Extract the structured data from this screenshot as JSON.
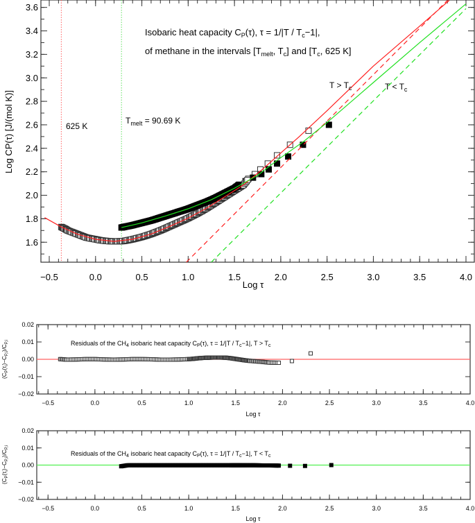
{
  "chart_data": [
    {
      "type": "scatter",
      "xlabel": "Log τ",
      "ylabel": "Log CP(τ) [J/(mol K)]",
      "xlim": [
        -0.59,
        4.09
      ],
      "ylim": [
        1.43,
        3.663
      ],
      "xticks": [
        "-0.5",
        "0.0",
        "0.5",
        "1.0",
        "1.5",
        "2.0",
        "2.5",
        "3.0",
        "3.5",
        "4.0"
      ],
      "yticks": [
        "1.6",
        "1.8",
        "2.0",
        "2.2",
        "2.4",
        "2.6",
        "2.8",
        "3.0",
        "3.2",
        "3.4",
        "3.6"
      ],
      "title_line1": {
        "a": "Isobaric heat capacity C",
        "b": "P",
        "c": "(τ), τ = 1/|T / T",
        "d": "c",
        "e": "−1|,"
      },
      "title_line2": {
        "a": "of methane in the intervals [T",
        "b": "melt",
        "c": ", T",
        "d": "c",
        "e": "] and [T",
        "f": "c",
        "g": ", 625 K]"
      },
      "label_above": {
        "a": "T > T",
        "b": "c"
      },
      "label_below": {
        "a": "T < T",
        "b": "c"
      },
      "vline_625": {
        "x": -0.37,
        "label": "625 K",
        "color": "#ff6060"
      },
      "vline_melt": {
        "x": 0.28,
        "label_a": "T",
        "label_b": "melt",
        "label_c": " = 90.69 K",
        "color": "#60e060"
      },
      "colors": {
        "above": "#ff2020",
        "below": "#20e020"
      },
      "series": [
        {
          "name": "T > Tc",
          "marker": "open-square",
          "x": [
            -0.37,
            -0.33,
            -0.3,
            -0.25,
            -0.2,
            -0.15,
            -0.1,
            -0.05,
            0,
            0.05,
            0.1,
            0.15,
            0.2,
            0.25,
            0.3,
            0.35,
            0.4,
            0.45,
            0.5,
            0.55,
            0.6,
            0.65,
            0.7,
            0.75,
            0.8,
            0.85,
            0.9,
            0.95,
            1.0,
            1.05,
            1.1,
            1.15,
            1.2,
            1.25,
            1.3,
            1.35,
            1.4,
            1.45,
            1.5,
            1.55,
            1.6,
            1.65,
            1.72,
            1.78,
            1.86,
            1.96,
            2.1,
            2.3
          ],
          "y": [
            1.73,
            1.715,
            1.7,
            1.685,
            1.67,
            1.655,
            1.64,
            1.632,
            1.625,
            1.617,
            1.612,
            1.609,
            1.607,
            1.608,
            1.61,
            1.617,
            1.625,
            1.635,
            1.645,
            1.657,
            1.67,
            1.685,
            1.7,
            1.717,
            1.735,
            1.752,
            1.77,
            1.787,
            1.805,
            1.825,
            1.845,
            1.867,
            1.89,
            1.915,
            1.94,
            1.965,
            1.99,
            2.015,
            2.04,
            2.065,
            2.09,
            2.14,
            2.18,
            2.22,
            2.27,
            2.34,
            2.43,
            2.55
          ]
        },
        {
          "name": "T < Tc",
          "marker": "filled-square",
          "x": [
            0.28,
            0.32,
            0.36,
            0.4,
            0.45,
            0.5,
            0.55,
            0.6,
            0.65,
            0.7,
            0.75,
            0.8,
            0.85,
            0.9,
            0.95,
            1.0,
            1.05,
            1.1,
            1.15,
            1.2,
            1.25,
            1.3,
            1.35,
            1.4,
            1.45,
            1.5,
            1.55,
            1.62,
            1.7,
            1.79,
            1.87,
            1.96,
            2.08,
            2.24,
            2.52
          ],
          "y": [
            1.725,
            1.732,
            1.738,
            1.745,
            1.755,
            1.765,
            1.775,
            1.785,
            1.797,
            1.81,
            1.822,
            1.835,
            1.847,
            1.86,
            1.872,
            1.885,
            1.9,
            1.915,
            1.93,
            1.945,
            1.962,
            1.98,
            2.0,
            2.02,
            2.04,
            2.06,
            2.09,
            2.12,
            2.15,
            2.18,
            2.22,
            2.27,
            2.33,
            2.43,
            2.6
          ]
        },
        {
          "name": "fit T > Tc",
          "style": "solid",
          "x": [
            -0.55,
            -0.37,
            -0.2,
            0,
            0.2,
            0.4,
            0.6,
            0.8,
            1.0,
            1.2,
            1.4,
            1.6,
            1.8,
            2.0,
            2.2,
            2.5,
            3.0,
            3.5,
            3.82
          ],
          "y": [
            1.81,
            1.73,
            1.67,
            1.625,
            1.607,
            1.625,
            1.67,
            1.735,
            1.805,
            1.89,
            1.99,
            2.09,
            2.22,
            2.36,
            2.5,
            2.72,
            3.1,
            3.44,
            3.66
          ]
        },
        {
          "name": "asymptote T > Tc",
          "style": "dashed",
          "x": [
            0.98,
            3.8
          ],
          "y": [
            1.43,
            3.66
          ]
        },
        {
          "name": "fit T < Tc",
          "style": "solid",
          "x": [
            0.28,
            0.5,
            0.75,
            1.0,
            1.25,
            1.5,
            1.75,
            2.0,
            2.25,
            2.5,
            3.0,
            3.5,
            4.0
          ],
          "y": [
            1.725,
            1.765,
            1.822,
            1.885,
            1.962,
            2.06,
            2.17,
            2.32,
            2.46,
            2.62,
            2.96,
            3.3,
            3.63
          ]
        },
        {
          "name": "asymptote T < Tc",
          "style": "dashed",
          "x": [
            1.25,
            4.0
          ],
          "y": [
            1.43,
            3.59
          ]
        }
      ]
    },
    {
      "type": "scatter",
      "title": {
        "a": "Residuals of the CH",
        "b": "4",
        "c": " isobaric heat capacity C",
        "d": "P",
        "e": "(τ), τ = 1/|T / T",
        "f": "c",
        "g": "−1|, T > T",
        "h": "c"
      },
      "xlabel": "Log τ",
      "ylabel": {
        "a": "(C",
        "b": "P",
        "c": "(τ",
        "d": "i",
        "e": ")−C",
        "f": "P,i",
        "g": ")/C",
        "h": "P,i"
      },
      "xlim": [
        -0.62,
        4.0
      ],
      "ylim": [
        -0.02,
        0.02
      ],
      "xticks": [
        "-0.5",
        "0.0",
        "0.5",
        "1.0",
        "1.5",
        "2.0",
        "2.5",
        "3.0",
        "3.5",
        "4.0"
      ],
      "yticks": [
        "-0.02",
        "-0.01",
        "0.00",
        "0.01",
        "0.02"
      ],
      "zero_line_color": "#ff6060",
      "marker": "open-square",
      "x": [
        -0.37,
        -0.3,
        -0.2,
        -0.1,
        0,
        0.1,
        0.2,
        0.3,
        0.4,
        0.5,
        0.6,
        0.7,
        0.8,
        0.9,
        1.0,
        1.05,
        1.1,
        1.15,
        1.2,
        1.25,
        1.3,
        1.35,
        1.4,
        1.45,
        1.5,
        1.55,
        1.6,
        1.65,
        1.72,
        1.79,
        1.86,
        1.96,
        2.1,
        2.3
      ],
      "y": [
        0.0001,
        -0.0002,
        -0.0001,
        0.0001,
        0.0001,
        -0.0001,
        -0.0002,
        -0.0001,
        0.0001,
        0.0001,
        0.0,
        -0.0002,
        -0.0002,
        -0.0001,
        0.0001,
        0.0003,
        0.0006,
        0.0008,
        0.0009,
        0.001,
        0.001,
        0.001,
        0.0009,
        0.0006,
        0.0002,
        -0.0002,
        -0.0006,
        -0.0009,
        -0.0012,
        -0.0015,
        -0.0019,
        -0.002,
        -0.001,
        0.0034
      ]
    },
    {
      "type": "scatter",
      "title": {
        "a": "Residuals of the CH",
        "b": "4",
        "c": " isobaric heat capacity C",
        "d": "P",
        "e": "(τ), τ = 1/|T / T",
        "f": "c",
        "g": "−1|, T < T",
        "h": "c"
      },
      "xlabel": "Log τ",
      "ylabel": {
        "a": "(C",
        "b": "P",
        "c": "(τ",
        "d": "i",
        "e": ")−C",
        "f": "P,i",
        "g": ")/C",
        "h": "P,i"
      },
      "xlim": [
        -0.62,
        4.0
      ],
      "ylim": [
        -0.02,
        0.02
      ],
      "xticks": [
        "-0.5",
        "0.0",
        "0.5",
        "1.0",
        "1.5",
        "2.0",
        "2.5",
        "3.0",
        "3.5",
        "4.0"
      ],
      "yticks": [
        "-0.02",
        "-0.01",
        "0.00",
        "0.01",
        "0.02"
      ],
      "zero_line_color": "#50f050",
      "marker": "filled-square",
      "x": [
        0.28,
        0.35,
        0.45,
        0.55,
        0.65,
        0.75,
        0.85,
        0.95,
        1.05,
        1.15,
        1.25,
        1.35,
        1.45,
        1.5,
        1.55,
        1.62,
        1.7,
        1.79,
        1.87,
        1.96,
        2.08,
        2.24,
        2.52
      ],
      "y": [
        -0.0007,
        -0.0001,
        -0.0001,
        -0.0001,
        -0.0001,
        -0.0001,
        -0.0001,
        -0.0001,
        -0.0001,
        -0.0001,
        -0.0001,
        -0.0001,
        -0.0001,
        -0.0001,
        -0.0001,
        -0.0001,
        -0.0001,
        -0.0002,
        -0.0002,
        -0.0003,
        -0.0004,
        -0.0005,
        0.0
      ]
    }
  ]
}
